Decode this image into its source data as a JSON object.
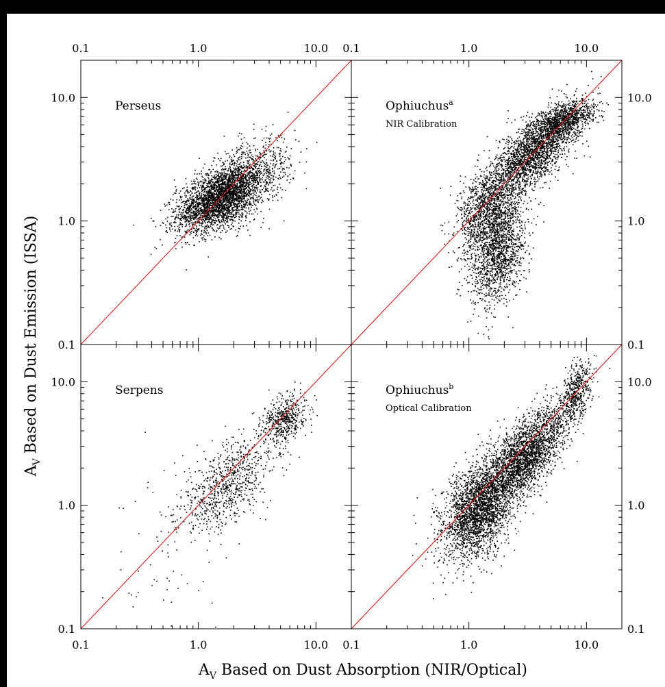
{
  "chart_data": {
    "type": "scatter",
    "xlabel": {
      "main": "A",
      "sub": "V",
      "rest": " Based on Dust Absorption (NIR/Optical)"
    },
    "ylabel": {
      "main": "A",
      "sub": "V",
      "rest": " Based on Dust Emission (ISSA)"
    },
    "scale": "log",
    "grid": false,
    "xlim": [
      0.1,
      20.0
    ],
    "ylim": [
      0.1,
      20.0
    ],
    "tick_values": [
      0.1,
      1.0,
      10.0
    ],
    "tick_labels": [
      "0.1",
      "1.0",
      "10.0"
    ],
    "reference_line": {
      "type": "y=x",
      "color": "#ff0000"
    },
    "panels": [
      {
        "id": "perseus",
        "title": "Perseus",
        "sup": "",
        "subtitle": "",
        "clusters": [
          {
            "cx": 1.5,
            "cy": 1.5,
            "sx": 0.18,
            "sy": 0.13,
            "rho": 0.5,
            "n": 2800
          },
          {
            "cx": 2.5,
            "cy": 2.2,
            "sx": 0.2,
            "sy": 0.16,
            "rho": 0.5,
            "n": 900
          }
        ]
      },
      {
        "id": "ophiuchus-nir",
        "title": "Ophiuchus",
        "sup": "a",
        "subtitle": "NIR Calibration",
        "clusters": [
          {
            "cx": 1.4,
            "cy": 1.2,
            "sx": 0.12,
            "sy": 0.17,
            "rho": 0.3,
            "n": 1200
          },
          {
            "cx": 1.8,
            "cy": 0.55,
            "sx": 0.12,
            "sy": 0.22,
            "rho": 0.4,
            "n": 1400
          },
          {
            "cx": 3.5,
            "cy": 3.5,
            "sx": 0.18,
            "sy": 0.18,
            "rho": 0.7,
            "n": 2200
          },
          {
            "cx": 6.5,
            "cy": 6.5,
            "sx": 0.13,
            "sy": 0.08,
            "rho": 0.5,
            "n": 1000
          }
        ]
      },
      {
        "id": "serpens",
        "title": "Serpens",
        "sup": "",
        "subtitle": "",
        "clusters": [
          {
            "cx": 5.5,
            "cy": 5.0,
            "sx": 0.09,
            "sy": 0.1,
            "rho": 0.3,
            "n": 500
          },
          {
            "cx": 1.8,
            "cy": 1.5,
            "sx": 0.2,
            "sy": 0.2,
            "rho": 0.6,
            "n": 800
          },
          {
            "cx": 0.6,
            "cy": 0.5,
            "sx": 0.3,
            "sy": 0.35,
            "rho": 0.2,
            "n": 80
          }
        ]
      },
      {
        "id": "ophiuchus-optical",
        "title": "Ophiuchus",
        "sup": "b",
        "subtitle": "Optical Calibration",
        "clusters": [
          {
            "cx": 1.2,
            "cy": 0.9,
            "sx": 0.15,
            "sy": 0.2,
            "rho": 0.4,
            "n": 2600
          },
          {
            "cx": 3.0,
            "cy": 2.5,
            "sx": 0.18,
            "sy": 0.2,
            "rho": 0.7,
            "n": 2600
          },
          {
            "cx": 8.0,
            "cy": 8.0,
            "sx": 0.07,
            "sy": 0.13,
            "rho": 0.5,
            "n": 500
          }
        ]
      }
    ]
  }
}
